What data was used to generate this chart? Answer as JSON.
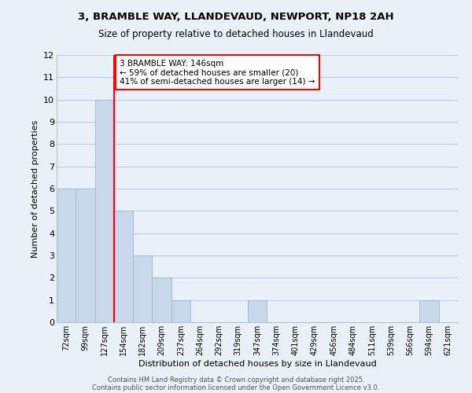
{
  "title_line1": "3, BRAMBLE WAY, LLANDEVAUD, NEWPORT, NP18 2AH",
  "title_line2": "Size of property relative to detached houses in Llandevaud",
  "xlabel": "Distribution of detached houses by size in Llandevaud",
  "ylabel": "Number of detached properties",
  "categories": [
    "72sqm",
    "99sqm",
    "127sqm",
    "154sqm",
    "182sqm",
    "209sqm",
    "237sqm",
    "264sqm",
    "292sqm",
    "319sqm",
    "347sqm",
    "374sqm",
    "401sqm",
    "429sqm",
    "456sqm",
    "484sqm",
    "511sqm",
    "539sqm",
    "566sqm",
    "594sqm",
    "621sqm"
  ],
  "values": [
    6,
    6,
    10,
    5,
    3,
    2,
    1,
    0,
    0,
    0,
    1,
    0,
    0,
    0,
    0,
    0,
    0,
    0,
    0,
    1,
    0
  ],
  "bar_color": "#c8d8eb",
  "bar_edge_color": "#a8bcd0",
  "vline_color": "red",
  "vline_pos": 2.5,
  "annotation_text": "3 BRAMBLE WAY: 146sqm\n← 59% of detached houses are smaller (20)\n41% of semi-detached houses are larger (14) →",
  "annotation_box_color": "white",
  "annotation_box_edge": "red",
  "ylim": [
    0,
    12
  ],
  "yticks": [
    0,
    1,
    2,
    3,
    4,
    5,
    6,
    7,
    8,
    9,
    10,
    11,
    12
  ],
  "grid_color": "#c0cce0",
  "bg_color": "#e8f0f8",
  "footer_line1": "Contains HM Land Registry data © Crown copyright and database right 2025.",
  "footer_line2": "Contains public sector information licensed under the Open Government Licence v3.0."
}
